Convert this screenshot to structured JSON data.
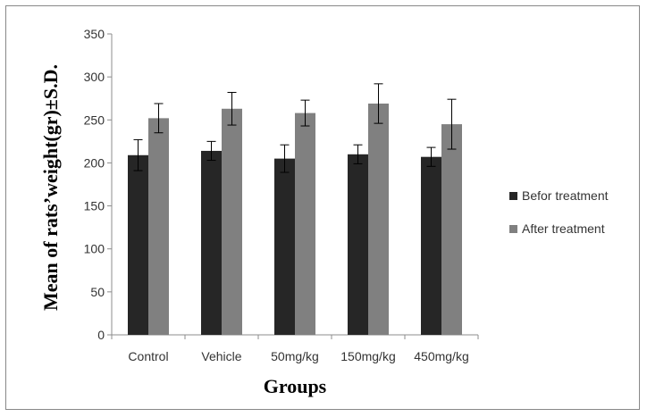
{
  "chart_data": {
    "type": "bar",
    "title": "",
    "xlabel": "Groups",
    "ylabel": "Mean of rats’weight(gr)±S.D.",
    "categories": [
      "Control",
      "Vehicle",
      "50mg/kg",
      "150mg/kg",
      "450mg/kg"
    ],
    "series": [
      {
        "name": "Befor treatment",
        "color": "#262626",
        "values": [
          209,
          214,
          205,
          210,
          207
        ],
        "errors": [
          18,
          11,
          16,
          11,
          11
        ]
      },
      {
        "name": "After treatment",
        "color": "#808080",
        "values": [
          252,
          263,
          258,
          269,
          245
        ],
        "errors": [
          17,
          19,
          15,
          23,
          29
        ]
      }
    ],
    "ylim": [
      0,
      350
    ],
    "yticks": [
      "0",
      "50",
      "100",
      "150",
      "200",
      "250",
      "300",
      "350"
    ],
    "grid": false,
    "error_bars": true,
    "legend_position": "right"
  }
}
